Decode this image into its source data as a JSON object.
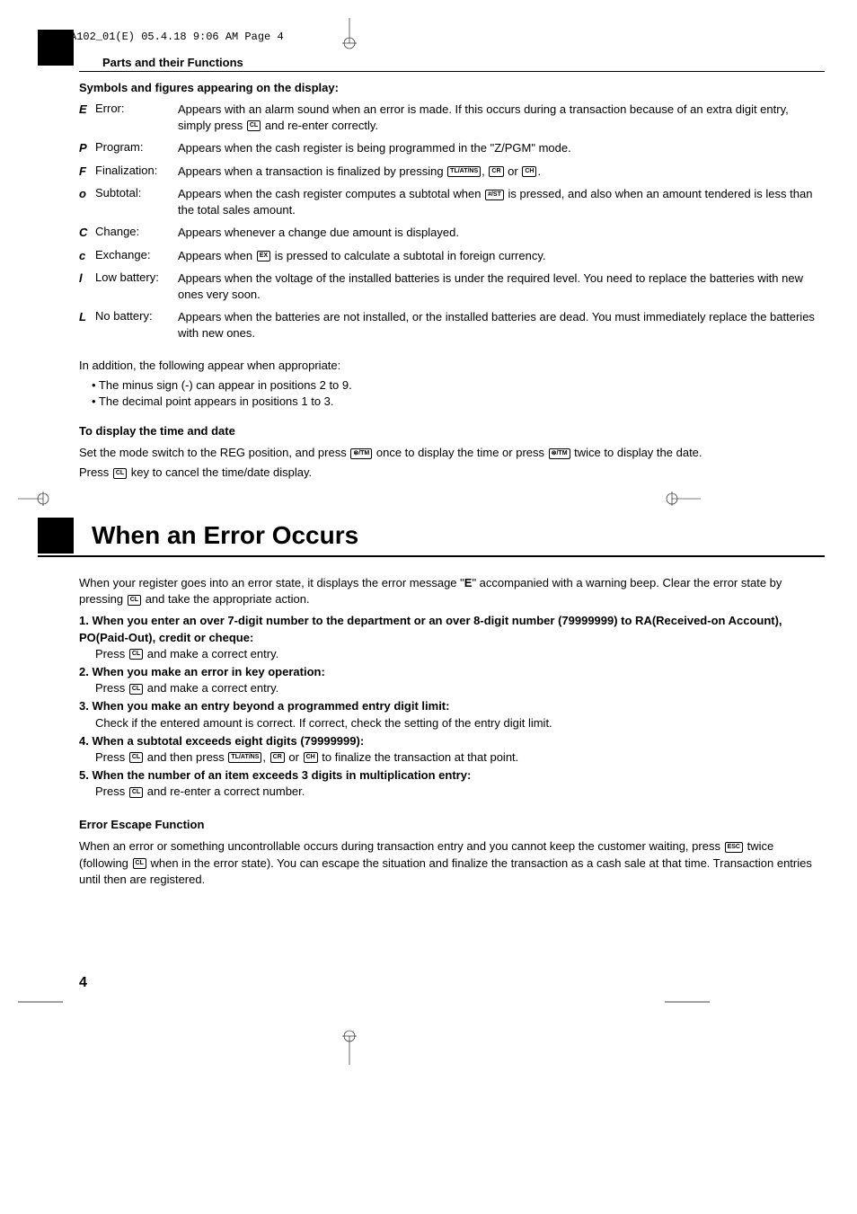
{
  "slug": "A102_01(E)  05.4.18 9:06 AM  Page 4",
  "section_header": "Parts and their Functions",
  "symbols_heading": "Symbols and figures appearing on the display:",
  "symbols": [
    {
      "glyph": "E",
      "label": "Error:",
      "desc_a": "Appears with an alarm sound when an error is made.  If this occurs during a transaction because of an extra digit entry, simply press ",
      "key1": "CL",
      "desc_b": " and re-enter correctly."
    },
    {
      "glyph": "P",
      "label": "Program:",
      "desc_a": "Appears when the cash register is being programmed in the \"Z/PGM\" mode.",
      "key1": "",
      "desc_b": ""
    },
    {
      "glyph": "F",
      "label": "Finalization:",
      "desc_a": "Appears when a transaction is finalized by pressing ",
      "key1": "TL/AT/NS",
      "desc_b": ", ",
      "key2": "CR",
      "desc_c": " or ",
      "key3": "CH",
      "desc_d": "."
    },
    {
      "glyph": "o",
      "label": "Subtotal:",
      "desc_a": "Appears when the cash register computes a subtotal when ",
      "key1": "#/ST",
      "desc_b": " is pressed, and also when an amount tendered is less than the total sales amount."
    },
    {
      "glyph": "C",
      "label": "Change:",
      "desc_a": "Appears whenever a change due amount is displayed.",
      "key1": "",
      "desc_b": ""
    },
    {
      "glyph": "c",
      "label": "Exchange:",
      "desc_a": "Appears when ",
      "key1": "EX",
      "desc_b": " is pressed to calculate a subtotal in foreign currency."
    },
    {
      "glyph": "l",
      "label": "Low battery:",
      "desc_a": "Appears when the voltage of the installed batteries is under the required level.  You need to replace the batteries with new ones very soon.",
      "key1": "",
      "desc_b": ""
    },
    {
      "glyph": "L",
      "label": "No battery:",
      "desc_a": "Appears when the batteries are not installed, or the installed batteries are dead.  You must immediately replace the batteries with new ones.",
      "key1": "",
      "desc_b": ""
    }
  ],
  "addendum_intro": "In addition, the following appear when appropriate:",
  "addendum_bullets": [
    "The minus sign (-) can appear in positions 2 to 9.",
    "The decimal point appears in positions 1 to 3."
  ],
  "timedate_heading": "To display the time and date",
  "timedate_line1a": "Set the mode switch to the REG position, and press ",
  "timedate_key1": "⊗/TM",
  "timedate_line1b": " once to display the time or press ",
  "timedate_key2": "⊗/TM",
  "timedate_line1c": " twice to display the date.",
  "timedate_line2a": "Press ",
  "timedate_key3": "CL",
  "timedate_line2b": " key to cancel the time/date display.",
  "error_heading": "When an Error Occurs",
  "error_intro_a": "When your register goes into an error state, it displays the error message \"",
  "error_glyph": "E",
  "error_intro_b": "\" accompanied with a warning beep.  Clear the error state by pressing ",
  "error_key": "CL",
  "error_intro_c": " and take the appropriate action.",
  "error_items": [
    {
      "num": "1.",
      "head": "When you enter an over 7-digit number to the department or an over 8-digit number (79999999) to RA(Received-on Account), PO(Paid-Out), credit or cheque:",
      "body_a": "Press ",
      "k1": "CL",
      "body_b": " and make a correct entry."
    },
    {
      "num": "2.",
      "head": "When you make an error in key operation:",
      "body_a": "Press ",
      "k1": "CL",
      "body_b": " and make a correct entry."
    },
    {
      "num": "3.",
      "head": "When you make an entry beyond a programmed entry digit limit:",
      "body_a": "Check if the entered amount is correct.  If correct, check the setting of the entry digit limit.",
      "k1": "",
      "body_b": ""
    },
    {
      "num": "4.",
      "head": "When a subtotal exceeds eight digits (79999999):",
      "body_a": "Press ",
      "k1": "CL",
      "body_b": " and then press ",
      "k2": "TL/AT/NS",
      "body_c": ", ",
      "k3": "CR",
      "body_d": " or ",
      "k4": "CH",
      "body_e": " to finalize the transaction at that point."
    },
    {
      "num": "5.",
      "head": "When the number of an item exceeds 3 digits in multiplication entry:",
      "body_a": "Press ",
      "k1": "CL",
      "body_b": " and re-enter a correct number."
    }
  ],
  "escape_heading": "Error Escape Function",
  "escape_a": "When an error or something uncontrollable occurs during transaction entry and you cannot keep the customer waiting, press ",
  "escape_k1": "ESC",
  "escape_b": " twice (following ",
  "escape_k2": "CL",
  "escape_c": " when in the error state).  You can escape the situation and finalize the transaction as a cash sale at that time.  Transaction entries until then are registered.",
  "page_number": "4"
}
